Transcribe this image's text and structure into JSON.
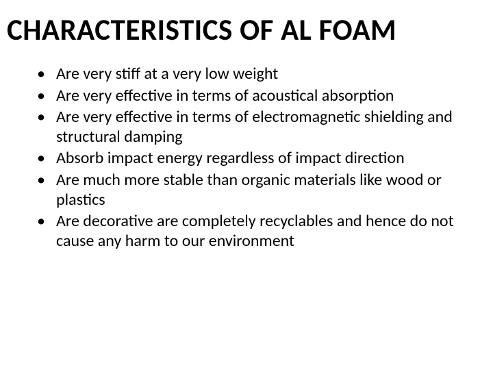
{
  "slide": {
    "title": "CHARACTERISTICS OF AL FOAM",
    "title_fontsize": 43,
    "title_fontweight": 700,
    "title_color": "#000000",
    "bullets": [
      "Are very stiff at a very low weight",
      "Are very effective in terms of acoustical absorption",
      "Are very effective in terms of electromagnetic shielding and structural damping",
      "Absorb impact energy regardless of impact direction",
      "Are much more stable than organic materials like wood or plastics",
      "Are decorative are completely recyclables and hence do not cause any harm to our environment"
    ],
    "bullet_fontsize": 24,
    "bullet_color": "#000000",
    "background_color": "#ffffff"
  }
}
